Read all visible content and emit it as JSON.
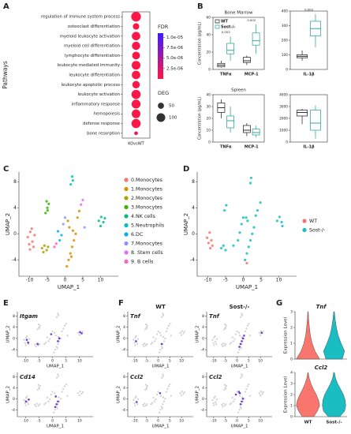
{
  "panels": [
    "A",
    "B",
    "C",
    "D",
    "E",
    "F",
    "G"
  ],
  "chart_data": [
    {
      "type": "dot",
      "y_label": "Pathways",
      "x_category": "KOvsWT",
      "categories": [
        "regulation of immune system process",
        "osteoclast differentiation",
        "myeloid leukocyte activation",
        "myeloid cell differentiation",
        "lymphocyte differentiation",
        "leukocyte mediated immunity",
        "leukocyte differentiation",
        "leukocyte apoptotic process",
        "leukocyte activation",
        "inflammatory response",
        "hemopoiesis",
        "defense response",
        "bone resorption"
      ],
      "fdr": [
        1e-07,
        1e-07,
        2e-07,
        3e-07,
        2e-07,
        1e-07,
        2e-07,
        3e-07,
        1e-07,
        1e-07,
        2e-07,
        1e-07,
        1.5e-06
      ],
      "deg": [
        125,
        55,
        95,
        90,
        80,
        100,
        95,
        75,
        110,
        105,
        100,
        110,
        18
      ],
      "color_title": "FDR",
      "clim": [
        0,
        1.1e-05
      ],
      "cticks": [
        {
          "value": 1e-05,
          "label": "1.0e-05"
        },
        {
          "value": 7.5e-06,
          "label": "7.5e-06"
        },
        {
          "value": 5e-06,
          "label": "5.0e-06"
        },
        {
          "value": 2.5e-06,
          "label": "2.5e-06"
        }
      ],
      "colorscale": [
        "#ff1744",
        "#3d1cff"
      ],
      "size_title": "DEG",
      "size_ticks": [
        50,
        100
      ]
    },
    {
      "type": "box",
      "title": "Bone Marrow",
      "y_label": "Concentration (pg/mL)",
      "categories": [
        "TNFα",
        "MCP-1"
      ],
      "series": [
        {
          "name": "WT",
          "color": "#1a1a1a",
          "boxes": [
            [
              2,
              3,
              5,
              7,
              10
            ],
            [
              5,
              8,
              10,
              14,
              16
            ]
          ]
        },
        {
          "name": "Sost-/-",
          "color": "#1f9e94",
          "boxes": [
            [
              10,
              18,
              22,
              30,
              38
            ],
            [
              18,
              28,
              33,
              42,
              52
            ]
          ]
        }
      ],
      "p_values": [
        "0.003",
        "0.002"
      ],
      "ylim": [
        0,
        60
      ],
      "yticks": [
        0,
        20,
        40,
        60
      ],
      "legend": "top-left"
    },
    {
      "type": "box",
      "categories": [
        "IL-1β"
      ],
      "series": [
        {
          "color": "#1a1a1a",
          "boxes": [
            [
              60,
              80,
              90,
              100,
              130
            ]
          ]
        },
        {
          "color": "#1f9e94",
          "boxes": [
            [
              150,
              230,
              280,
              330,
              380
            ]
          ]
        }
      ],
      "p_values": [
        "0.003"
      ],
      "ylim": [
        0,
        400
      ],
      "yticks": [
        0,
        100,
        200,
        300,
        400
      ]
    },
    {
      "type": "box",
      "title": "Spleen",
      "y_label": "Concentration (pg/mL)",
      "categories": [
        "TNFα",
        "MCP-1"
      ],
      "series": [
        {
          "color": "#1a1a1a",
          "boxes": [
            [
              20,
              25,
              29,
              33,
              36
            ],
            [
              5,
              8,
              10,
              14,
              16
            ]
          ]
        },
        {
          "color": "#1f9e94",
          "boxes": [
            [
              8,
              12,
              18,
              22,
              30
            ],
            [
              4,
              6,
              8,
              11,
              14
            ]
          ]
        }
      ],
      "ylim": [
        0,
        40
      ],
      "yticks": [
        0,
        10,
        20,
        30,
        40
      ]
    },
    {
      "type": "box",
      "categories": [
        "IL-1β"
      ],
      "series": [
        {
          "color": "#1a1a1a",
          "boxes": [
            [
              1500,
              2200,
              2500,
              2700,
              2800
            ]
          ]
        },
        {
          "color": "#1f9e94",
          "boxes": [
            [
              300,
              1000,
              1600,
              2700,
              3100
            ]
          ]
        }
      ],
      "ylim": [
        0,
        4000
      ],
      "yticks": [
        0,
        1000,
        2000,
        3000,
        4000
      ]
    },
    {
      "type": "scatter",
      "x_label": "UMAP_1",
      "y_label": "UMAP_2",
      "xlim": [
        -13,
        15
      ],
      "ylim": [
        -6.5,
        9.5
      ],
      "xticks": [
        -10,
        -5,
        0,
        5,
        10
      ],
      "yticks": [
        -4,
        0,
        4,
        8
      ],
      "legend": "right",
      "series": [
        {
          "name": "0.Monocytes",
          "color": "#F8766D",
          "x": [
            -10.5,
            -9.8,
            -9.2,
            -8.6,
            -10.1,
            -9.4,
            -8.9,
            -9.9
          ],
          "y": [
            -0.5,
            0.3,
            -1.2,
            -0.2,
            -1.6,
            0.8,
            -2.0,
            -2.4
          ]
        },
        {
          "name": "1.Monocytes",
          "color": "#D89000",
          "x": [
            0.5,
            1.0,
            1.5,
            2.0,
            2.5,
            3.0,
            1.2,
            0.8,
            3.5,
            4.0,
            1.8,
            2.2
          ],
          "y": [
            -5,
            -4,
            -3,
            -2,
            -1,
            0,
            1,
            2,
            2.5,
            3.5,
            -3.5,
            0.5
          ]
        },
        {
          "name": "2.Monocytes",
          "color": "#A3A500",
          "x": [
            -6.5,
            -5.8,
            -5.2,
            -6.1,
            -4.8
          ],
          "y": [
            -2.2,
            -1.8,
            -2.5,
            -2.8,
            -2.0
          ]
        },
        {
          "name": "3.Monocytes",
          "color": "#39B600",
          "x": [
            -5.5,
            -5.0,
            -4.6,
            -5.2,
            -4.9
          ],
          "y": [
            3.2,
            4.0,
            4.6,
            5.0,
            3.6
          ]
        },
        {
          "name": "4.NK cells",
          "color": "#00BF7D",
          "x": [
            9.5,
            10.2,
            10.8,
            11.2,
            10.0
          ],
          "y": [
            2.0,
            2.6,
            1.8,
            2.4,
            1.2
          ]
        },
        {
          "name": "5.Neutrophils",
          "color": "#00BFC4",
          "x": [
            1.6,
            2.2,
            2.0
          ],
          "y": [
            7.6,
            8.2,
            8.8
          ]
        },
        {
          "name": "6.DC",
          "color": "#00B0F6",
          "x": [
            -1.5,
            -1.0,
            -2.0
          ],
          "y": [
            -1.0,
            -0.2,
            0.4
          ]
        },
        {
          "name": "7.Monocytes",
          "color": "#9590FF",
          "x": [
            -0.5,
            0.0,
            5.5
          ],
          "y": [
            1.5,
            2.5,
            1.0
          ]
        },
        {
          "name": "8. Stem cells",
          "color": "#E76BF3",
          "x": [
            4.5,
            5.0
          ],
          "y": [
            4.5,
            5.2
          ]
        },
        {
          "name": "9. B cells",
          "color": "#FF62BC",
          "x": [
            -3.0,
            -2.5
          ],
          "y": [
            -2.0,
            -1.5
          ]
        }
      ]
    },
    {
      "type": "scatter",
      "x_label": "UMAP_1",
      "y_label": "UMAP_2",
      "xlim": [
        -13,
        15
      ],
      "ylim": [
        -6.5,
        9.5
      ],
      "xticks": [
        -10,
        -5,
        0,
        5,
        10
      ],
      "yticks": [
        -4,
        0,
        4,
        8
      ],
      "legend": "right",
      "series": [
        {
          "name": "WT",
          "color": "#F8766D",
          "x": [
            -10.2,
            -9.5,
            -9.0,
            -8.7,
            -9.8,
            -9.3,
            1.0
          ],
          "y": [
            -0.6,
            0.2,
            -1.0,
            -1.8,
            -1.4,
            -2.2,
            -4.5
          ]
        },
        {
          "name": "Sost-/-",
          "color": "#19BDC2",
          "x": [
            -6.2,
            -5.6,
            -5.0,
            -5.3,
            -4.8,
            0.5,
            1.0,
            1.5,
            2.0,
            2.5,
            3.0,
            1.2,
            0.8,
            3.5,
            4.0,
            9.5,
            10.2,
            10.8,
            11.0,
            2.0,
            2.2,
            -1.5,
            -1.0,
            -0.5,
            0.0,
            4.8,
            -2.8
          ],
          "y": [
            -2.2,
            -1.8,
            -2.5,
            3.6,
            4.4,
            -4.0,
            -3.0,
            -2.0,
            -1.0,
            0.0,
            1.0,
            2.0,
            2.5,
            2.8,
            3.6,
            2.0,
            2.6,
            1.8,
            1.2,
            7.8,
            8.6,
            -1.0,
            0.2,
            1.5,
            2.5,
            4.8,
            -1.8
          ]
        }
      ]
    },
    {
      "type": "feature",
      "title": "Itgam",
      "x_label": "UMAP_1",
      "y_label": "UMAP_2",
      "xlim": [
        -13,
        15
      ],
      "ylim": [
        -6.5,
        9.5
      ],
      "xticks": [
        -10,
        -5,
        0,
        5,
        10
      ],
      "yticks": [
        -4,
        0,
        4,
        8
      ],
      "color": "#6a3fd1",
      "x": [
        -9.5,
        -9.0,
        -5.5,
        2.0,
        2.5,
        10.2,
        10.8,
        -0.5
      ],
      "y": [
        -0.5,
        -1.5,
        -2.0,
        -1.0,
        0.0,
        2.2,
        1.8,
        1.5
      ]
    },
    {
      "type": "feature",
      "title": "Cd14",
      "x_label": "UMAP_1",
      "y_label": "UMAP_2",
      "xlim": [
        -13,
        15
      ],
      "ylim": [
        -6.5,
        9.5
      ],
      "xticks": [
        -10,
        -5,
        0,
        5,
        10
      ],
      "yticks": [
        -4,
        0,
        4,
        8
      ],
      "color": "#6a3fd1",
      "x": [
        -9.8,
        -8.8,
        1.0,
        1.5,
        2.0,
        1.2
      ],
      "y": [
        -1.0,
        -0.3,
        -3.0,
        -2.0,
        -1.0,
        0.8
      ]
    },
    {
      "type": "feature",
      "title": "Tnf",
      "subtitle": "WT",
      "x_label": "UMAP_1",
      "y_label": "UMAP_2",
      "xlim": [
        -13,
        15
      ],
      "ylim": [
        -6.5,
        9.5
      ],
      "xticks": [
        -10,
        -5,
        0,
        5,
        10
      ],
      "yticks": [
        -4,
        0,
        4,
        8
      ],
      "color": "#6a3fd1",
      "x": [
        -9.5,
        1.5
      ],
      "y": [
        -1.0,
        -2.0
      ]
    },
    {
      "type": "feature",
      "title": "Tnf",
      "subtitle": "Sost-/-",
      "x_label": "UMAP_1",
      "y_label": "UMAP_2",
      "xlim": [
        -13,
        15
      ],
      "ylim": [
        -6.5,
        9.5
      ],
      "xticks": [
        -10,
        -5,
        0,
        5,
        10
      ],
      "yticks": [
        -4,
        0,
        4,
        8
      ],
      "color": "#6a3fd1",
      "x": [
        1.0,
        1.5,
        2.0,
        2.5,
        3.0,
        10.5
      ],
      "y": [
        -3.0,
        -2.0,
        -1.0,
        0.0,
        1.0,
        2.0
      ]
    },
    {
      "type": "feature",
      "title": "Ccl2",
      "x_label": "UMAP_1",
      "y_label": "UMAP_2",
      "xlim": [
        -13,
        15
      ],
      "ylim": [
        -6.5,
        9.5
      ],
      "xticks": [
        -10,
        -5,
        0,
        5,
        10
      ],
      "yticks": [
        -4,
        0,
        4,
        8
      ],
      "color": "#6a3fd1",
      "x": [
        -9.2,
        0.8
      ],
      "y": [
        -1.2,
        2.0
      ]
    },
    {
      "type": "feature",
      "title": "Ccl2",
      "x_label": "UMAP_1",
      "y_label": "UMAP_2",
      "xlim": [
        -13,
        15
      ],
      "ylim": [
        -6.5,
        9.5
      ],
      "xticks": [
        -10,
        -5,
        0,
        5,
        10
      ],
      "yticks": [
        -4,
        0,
        4,
        8
      ],
      "color": "#6a3fd1",
      "x": [
        1.5,
        2.0,
        2.5,
        1.2,
        0.8,
        -0.5
      ],
      "y": [
        -2.0,
        -1.0,
        0.0,
        2.0,
        2.5,
        1.5
      ]
    },
    {
      "type": "violin",
      "title": "Tnf",
      "y_label": "Expression Level",
      "ylim": [
        0,
        3
      ],
      "yticks": [
        0,
        1,
        2,
        3
      ],
      "levels": [
        0,
        0.5,
        1,
        1.5,
        2,
        2.5,
        3
      ],
      "series": [
        {
          "color": "#F8766D",
          "density": [
            1,
            0.6,
            0.35,
            0.2,
            0.12,
            0.06,
            0.02
          ]
        },
        {
          "color": "#19BDC2",
          "density": [
            0.7,
            0.9,
            0.6,
            0.35,
            0.2,
            0.1,
            0.03
          ]
        }
      ]
    },
    {
      "type": "violin",
      "title": "Ccl2",
      "y_label": "Expression Level",
      "ylim": [
        0,
        4
      ],
      "yticks": [
        0,
        1,
        2,
        3,
        4
      ],
      "categories": [
        "WT",
        "Sost-/-"
      ],
      "levels": [
        0,
        0.5,
        1,
        1.5,
        2,
        2.5,
        3,
        3.5,
        4
      ],
      "series": [
        {
          "color": "#F8766D",
          "density": [
            0.5,
            0.8,
            1,
            0.9,
            0.7,
            0.45,
            0.25,
            0.1,
            0.02
          ]
        },
        {
          "color": "#19BDC2",
          "density": [
            0.5,
            0.9,
            1,
            0.95,
            0.8,
            0.55,
            0.3,
            0.12,
            0.03
          ]
        }
      ]
    }
  ]
}
